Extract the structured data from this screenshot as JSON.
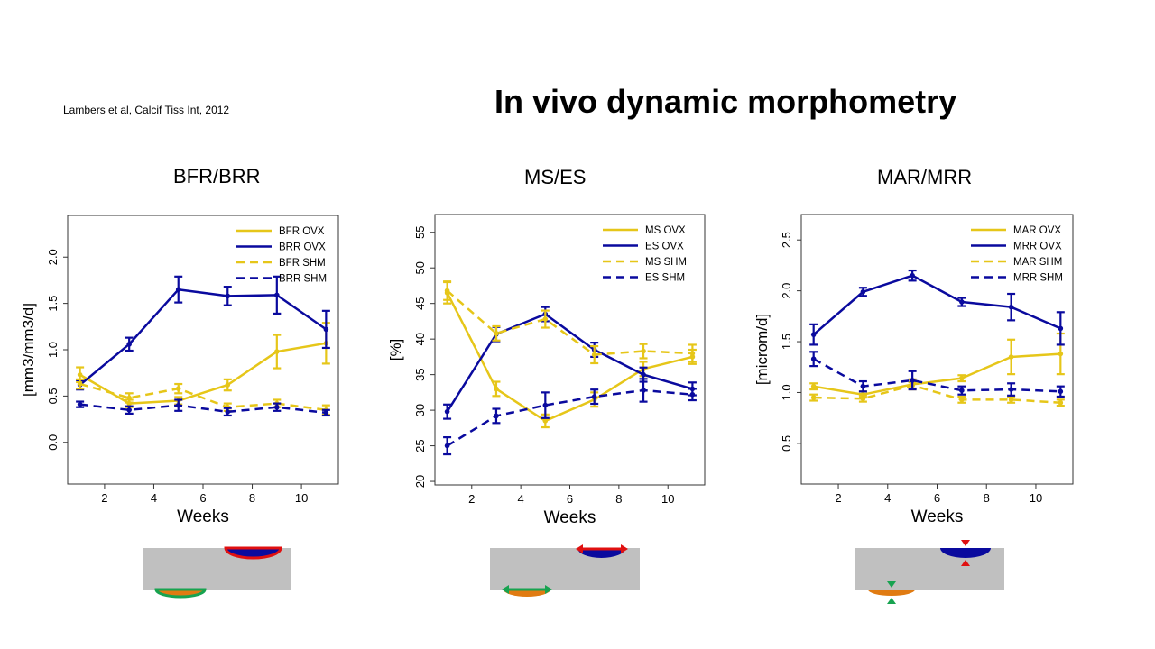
{
  "citation": "Lambers et al, Calcif Tiss Int, 2012",
  "title": "In vivo dynamic morphometry",
  "colors": {
    "ovx_formation": "#e6c619",
    "ovx_resorption": "#0a0a9e",
    "bone": "#c0c0c0",
    "resorption_cavity": "#0a0a9e",
    "formation_site": "#e07b12",
    "marker_red": "#e01010",
    "marker_green": "#17a350"
  },
  "chart_data": [
    {
      "type": "line",
      "panel_title": "BFR/BRR",
      "xlabel": "Weeks",
      "ylabel": "[mm3/mm3/d]",
      "xlim": [
        0.5,
        11.5
      ],
      "ylim": [
        -0.45,
        2.45
      ],
      "xticks": [
        2,
        4,
        6,
        8,
        10
      ],
      "yticks": [
        0.0,
        0.5,
        1.0,
        1.5,
        2.0
      ],
      "ytick_labels": [
        "0.0",
        "0.5",
        "1.0",
        "1.5",
        "2.0"
      ],
      "x": [
        1,
        3,
        5,
        7,
        9,
        11
      ],
      "legend_position": "top-right",
      "series": [
        {
          "name": "BFR OVX",
          "color": "#e6c619",
          "dash": false,
          "values": [
            0.73,
            0.42,
            0.45,
            0.62,
            0.98,
            1.07
          ],
          "err": [
            0.08,
            0.04,
            0.04,
            0.06,
            0.18,
            0.22
          ]
        },
        {
          "name": "BRR OVX",
          "color": "#0a0a9e",
          "dash": true,
          "dash_dummy": false,
          "values": [
            0.62,
            1.06,
            1.65,
            1.58,
            1.59,
            1.22
          ],
          "err": [
            0.05,
            0.07,
            0.14,
            0.1,
            0.2,
            0.2
          ]
        },
        {
          "name": "BFR SHM",
          "color": "#e6c619",
          "dash": true,
          "values": [
            0.63,
            0.48,
            0.58,
            0.38,
            0.42,
            0.35
          ],
          "err": [
            0.05,
            0.05,
            0.05,
            0.04,
            0.04,
            0.05
          ]
        },
        {
          "name": "BRR SHM",
          "color": "#0a0a9e",
          "dash": true,
          "values": [
            0.41,
            0.35,
            0.4,
            0.33,
            0.38,
            0.32
          ],
          "err": [
            0.03,
            0.04,
            0.06,
            0.04,
            0.04,
            0.03
          ]
        }
      ]
    },
    {
      "type": "line",
      "panel_title": "MS/ES",
      "xlabel": "Weeks",
      "ylabel": "[%]",
      "xlim": [
        0.5,
        11.5
      ],
      "ylim": [
        19.5,
        57.5
      ],
      "xticks": [
        2,
        4,
        6,
        8,
        10
      ],
      "yticks": [
        20,
        25,
        30,
        35,
        40,
        45,
        50,
        55
      ],
      "ytick_labels": [
        "20",
        "25",
        "30",
        "35",
        "40",
        "45",
        "50",
        "55"
      ],
      "x": [
        1,
        3,
        5,
        7,
        9,
        11
      ],
      "legend_position": "top-right",
      "series": [
        {
          "name": "MS OVX",
          "color": "#e6c619",
          "dash": false,
          "values": [
            46.5,
            33.0,
            28.5,
            31.5,
            35.8,
            37.5
          ],
          "err": [
            1.5,
            1.0,
            0.9,
            1.0,
            1.0,
            1.0
          ]
        },
        {
          "name": "ES OVX",
          "color": "#0a0a9e",
          "dash": false,
          "values": [
            29.8,
            40.7,
            43.5,
            38.5,
            35.0,
            33.0
          ],
          "err": [
            1.0,
            1.0,
            1.0,
            1.0,
            1.0,
            0.9
          ]
        },
        {
          "name": "MS SHM",
          "color": "#e6c619",
          "dash": true,
          "values": [
            46.8,
            40.8,
            42.8,
            37.8,
            38.3,
            38.0
          ],
          "err": [
            1.3,
            1.0,
            1.2,
            1.2,
            1.0,
            1.2
          ]
        },
        {
          "name": "ES SHM",
          "color": "#0a0a9e",
          "dash": true,
          "values": [
            25.0,
            29.2,
            30.7,
            31.9,
            32.8,
            32.2
          ],
          "err": [
            1.2,
            1.0,
            1.8,
            1.0,
            1.6,
            0.8
          ]
        }
      ]
    },
    {
      "type": "line",
      "panel_title": "MAR/MRR",
      "xlabel": "Weeks",
      "ylabel": "[microm/d]",
      "xlim": [
        0.5,
        11.5
      ],
      "ylim": [
        0.1,
        2.75
      ],
      "xticks": [
        2,
        4,
        6,
        8,
        10
      ],
      "yticks": [
        0.5,
        1.0,
        1.5,
        2.0,
        2.5
      ],
      "ytick_labels": [
        "0.5",
        "1.0",
        "1.5",
        "2.0",
        "2.5"
      ],
      "x": [
        1,
        3,
        5,
        7,
        9,
        11
      ],
      "legend_position": "top-right",
      "series": [
        {
          "name": "MAR OVX",
          "color": "#e6c619",
          "dash": false,
          "values": [
            1.06,
            0.98,
            1.08,
            1.14,
            1.35,
            1.38
          ],
          "err": [
            0.03,
            0.03,
            0.05,
            0.03,
            0.17,
            0.2
          ]
        },
        {
          "name": "MRR OVX",
          "color": "#0a0a9e",
          "dash": false,
          "values": [
            1.57,
            1.99,
            2.15,
            1.89,
            1.84,
            1.63
          ],
          "err": [
            0.1,
            0.04,
            0.05,
            0.04,
            0.13,
            0.16
          ]
        },
        {
          "name": "MAR SHM",
          "color": "#e6c619",
          "dash": true,
          "values": [
            0.95,
            0.94,
            1.07,
            0.93,
            0.93,
            0.9
          ],
          "err": [
            0.03,
            0.03,
            0.03,
            0.03,
            0.03,
            0.03
          ]
        },
        {
          "name": "MRR SHM",
          "color": "#0a0a9e",
          "dash": true,
          "values": [
            1.33,
            1.06,
            1.12,
            1.02,
            1.03,
            1.01
          ],
          "err": [
            0.07,
            0.05,
            0.09,
            0.04,
            0.06,
            0.05
          ]
        }
      ]
    }
  ]
}
